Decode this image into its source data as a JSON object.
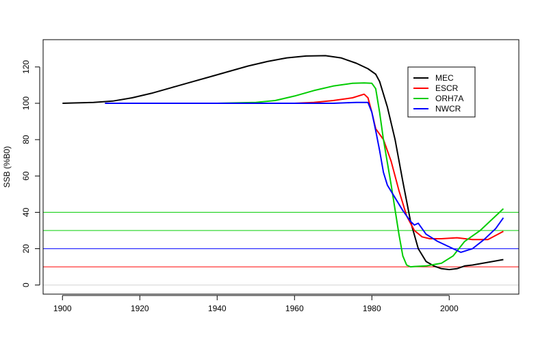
{
  "chart_data": {
    "type": "line",
    "title": "",
    "xlabel": "",
    "ylabel": "SSB (%B0)",
    "xlim": [
      1895,
      2018
    ],
    "ylim": [
      -5,
      135
    ],
    "xticks": [
      1900,
      1920,
      1940,
      1960,
      1980,
      2000
    ],
    "yticks": [
      0,
      20,
      40,
      60,
      80,
      100,
      120
    ],
    "grid": false,
    "legend_position": "top-right",
    "hlines": [
      {
        "y": 0,
        "color": "#d3d3d3"
      },
      {
        "y": 10,
        "color": "#ff0000"
      },
      {
        "y": 20,
        "color": "#0000ff"
      },
      {
        "y": 30,
        "color": "#00cc00"
      },
      {
        "y": 40,
        "color": "#00cc00"
      }
    ],
    "series": [
      {
        "name": "MEC",
        "color": "#000000",
        "x": [
          1900,
          1903,
          1908,
          1913,
          1918,
          1923,
          1928,
          1933,
          1938,
          1943,
          1948,
          1953,
          1958,
          1963,
          1968,
          1972,
          1976,
          1979,
          1981,
          1982,
          1984,
          1986,
          1988,
          1990,
          1992,
          1994,
          1996,
          1998,
          2000,
          2002,
          2004,
          2006,
          2010,
          2014
        ],
        "y": [
          100,
          100.2,
          100.5,
          101.2,
          103,
          105.5,
          108.5,
          111.5,
          114.5,
          117.5,
          120.5,
          123,
          125,
          126,
          126.2,
          125,
          122,
          119,
          116,
          112,
          98,
          80,
          57,
          35,
          20,
          13,
          10.5,
          9,
          8.5,
          9,
          10.5,
          11,
          12.5,
          14
        ]
      },
      {
        "name": "ESCR",
        "color": "#ff0000",
        "x": [
          1911,
          1920,
          1930,
          1940,
          1950,
          1960,
          1965,
          1970,
          1975,
          1978,
          1979,
          1980,
          1981,
          1983,
          1985,
          1987,
          1989,
          1991,
          1993,
          1995,
          1998,
          2002,
          2006,
          2010,
          2014
        ],
        "y": [
          100,
          100,
          100,
          100,
          100,
          100,
          100.5,
          101.5,
          103,
          105,
          103,
          95,
          86,
          80,
          68,
          52,
          38,
          30,
          26.5,
          25.5,
          25.5,
          26,
          25,
          25,
          29.5
        ]
      },
      {
        "name": "ORH7A",
        "color": "#00cc00",
        "x": [
          1911,
          1920,
          1930,
          1940,
          1950,
          1955,
          1960,
          1965,
          1970,
          1975,
          1978,
          1980,
          1981,
          1982,
          1983,
          1985,
          1987,
          1988,
          1989,
          1990,
          1991,
          1994,
          1998,
          2001,
          2004,
          2008,
          2011,
          2014
        ],
        "y": [
          100,
          100,
          100,
          100,
          100.5,
          101.5,
          104,
          107,
          109.5,
          111,
          111.2,
          111,
          108,
          95,
          80,
          55,
          28,
          16,
          11,
          10,
          10.2,
          10.5,
          12,
          16,
          24,
          30,
          36,
          42
        ]
      },
      {
        "name": "NWCR",
        "color": "#0000ff",
        "x": [
          1911,
          1920,
          1930,
          1940,
          1950,
          1960,
          1970,
          1976,
          1979,
          1980,
          1981,
          1982,
          1983,
          1984,
          1986,
          1988,
          1990,
          1991,
          1992,
          1994,
          1997,
          2000,
          2003,
          2006,
          2009,
          2012,
          2014
        ],
        "y": [
          100,
          100,
          100,
          100,
          100,
          100,
          100,
          100.5,
          100.5,
          95,
          85,
          74,
          62,
          55,
          48,
          41,
          35,
          33,
          34,
          28,
          24,
          21,
          18,
          20,
          25,
          31,
          37
        ]
      }
    ]
  }
}
